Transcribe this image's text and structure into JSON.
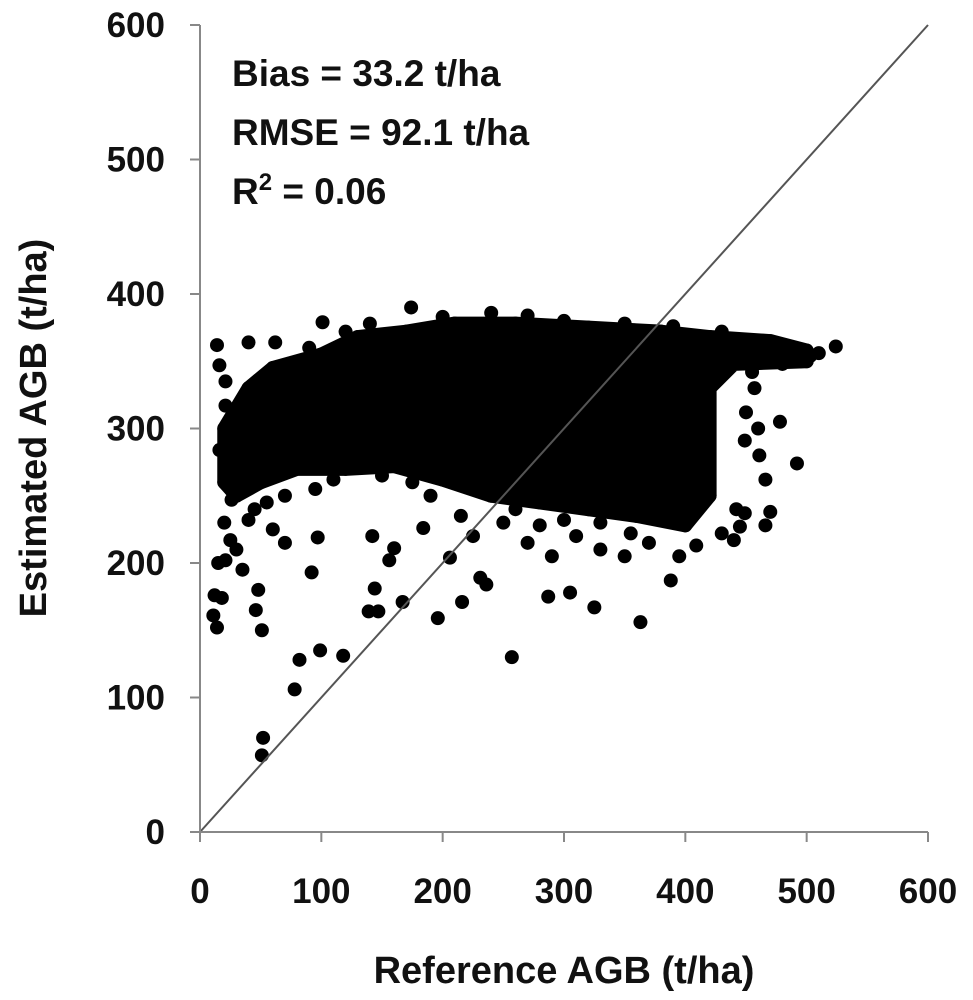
{
  "chart_data": {
    "type": "scatter",
    "title": "",
    "xlabel": "Reference AGB (t/ha)",
    "ylabel": "Estimated AGB (t/ha)",
    "xlim": [
      0,
      600
    ],
    "ylim": [
      0,
      600
    ],
    "xticks": [
      "0",
      "100",
      "200",
      "300",
      "400",
      "500",
      "600"
    ],
    "yticks": [
      "0",
      "100",
      "200",
      "300",
      "400",
      "500",
      "600"
    ],
    "grid": false,
    "legend": "none",
    "reference_line": {
      "name": "1:1 line",
      "from": [
        0,
        0
      ],
      "to": [
        600,
        600
      ],
      "color": "#555555"
    },
    "annotations": {
      "bias": "Bias = 33.2 t/ha",
      "rmse": "RMSE = 92.1 t/ha",
      "r2_prefix": "R",
      "r2_sup": "2",
      "r2_value": " = 0.06"
    },
    "marker_color": "#000000",
    "dense_region": [
      [
        20,
        300
      ],
      [
        40,
        330
      ],
      [
        60,
        345
      ],
      [
        100,
        355
      ],
      [
        130,
        368
      ],
      [
        170,
        372
      ],
      [
        210,
        378
      ],
      [
        260,
        378
      ],
      [
        320,
        375
      ],
      [
        380,
        372
      ],
      [
        420,
        368
      ],
      [
        470,
        365
      ],
      [
        500,
        358
      ],
      [
        500,
        350
      ],
      [
        440,
        348
      ],
      [
        420,
        330
      ],
      [
        420,
        250
      ],
      [
        400,
        228
      ],
      [
        360,
        235
      ],
      [
        320,
        240
      ],
      [
        280,
        245
      ],
      [
        240,
        250
      ],
      [
        200,
        262
      ],
      [
        160,
        272
      ],
      [
        120,
        270
      ],
      [
        80,
        270
      ],
      [
        50,
        260
      ],
      [
        30,
        250
      ],
      [
        20,
        260
      ]
    ],
    "points": [
      [
        52,
        70
      ],
      [
        51,
        57
      ],
      [
        78,
        106
      ],
      [
        82,
        128
      ],
      [
        99,
        135
      ],
      [
        118,
        131
      ],
      [
        92,
        193
      ],
      [
        97,
        219
      ],
      [
        144,
        181
      ],
      [
        147,
        164
      ],
      [
        139,
        164
      ],
      [
        167,
        171
      ],
      [
        156,
        202
      ],
      [
        160,
        211
      ],
      [
        196,
        159
      ],
      [
        216,
        171
      ],
      [
        257,
        130
      ],
      [
        287,
        175
      ],
      [
        305,
        178
      ],
      [
        325,
        167
      ],
      [
        363,
        156
      ],
      [
        388,
        187
      ],
      [
        409,
        213
      ],
      [
        445,
        227
      ],
      [
        449,
        237
      ],
      [
        492,
        274
      ],
      [
        440,
        217
      ],
      [
        142,
        220
      ],
      [
        206,
        204
      ],
      [
        231,
        189
      ],
      [
        236,
        184
      ],
      [
        184,
        226
      ],
      [
        14,
        362
      ],
      [
        16,
        347
      ],
      [
        21,
        335
      ],
      [
        12,
        176
      ],
      [
        11,
        161
      ],
      [
        14,
        152
      ],
      [
        18,
        174
      ],
      [
        21,
        202
      ],
      [
        25,
        217
      ],
      [
        26,
        247
      ],
      [
        16,
        284
      ],
      [
        25,
        299
      ],
      [
        21,
        317
      ],
      [
        37,
        284
      ],
      [
        33,
        262
      ],
      [
        48,
        180
      ],
      [
        46,
        165
      ],
      [
        51,
        150
      ],
      [
        40,
        232
      ],
      [
        30,
        210
      ],
      [
        20,
        230
      ],
      [
        15,
        200
      ],
      [
        35,
        195
      ],
      [
        45,
        240
      ],
      [
        60,
        225
      ],
      [
        70,
        215
      ],
      [
        101,
        379
      ],
      [
        62,
        364
      ],
      [
        174,
        390
      ],
      [
        49,
        336
      ],
      [
        40,
        364
      ],
      [
        90,
        360
      ],
      [
        140,
        378
      ],
      [
        120,
        372
      ],
      [
        200,
        383
      ],
      [
        240,
        386
      ],
      [
        270,
        384
      ],
      [
        300,
        380
      ],
      [
        350,
        378
      ],
      [
        390,
        376
      ],
      [
        430,
        372
      ],
      [
        524,
        361
      ],
      [
        503,
        354
      ],
      [
        486,
        357
      ],
      [
        470,
        363
      ],
      [
        455,
        342
      ],
      [
        457,
        330
      ],
      [
        450,
        312
      ],
      [
        449,
        291
      ],
      [
        461,
        280
      ],
      [
        466,
        262
      ],
      [
        470,
        238
      ],
      [
        466,
        228
      ],
      [
        442,
        240
      ],
      [
        430,
        222
      ],
      [
        460,
        300
      ],
      [
        478,
        305
      ],
      [
        510,
        356
      ],
      [
        495,
        350
      ],
      [
        480,
        348
      ],
      [
        445,
        360
      ],
      [
        250,
        230
      ],
      [
        270,
        215
      ],
      [
        290,
        205
      ],
      [
        310,
        220
      ],
      [
        330,
        210
      ],
      [
        350,
        205
      ],
      [
        370,
        215
      ],
      [
        395,
        205
      ],
      [
        410,
        240
      ],
      [
        260,
        240
      ],
      [
        225,
        220
      ],
      [
        215,
        235
      ],
      [
        190,
        250
      ],
      [
        175,
        260
      ],
      [
        150,
        265
      ],
      [
        110,
        262
      ],
      [
        95,
        255
      ],
      [
        70,
        250
      ],
      [
        55,
        245
      ],
      [
        330,
        230
      ],
      [
        355,
        222
      ],
      [
        380,
        232
      ],
      [
        300,
        232
      ],
      [
        280,
        228
      ]
    ]
  }
}
